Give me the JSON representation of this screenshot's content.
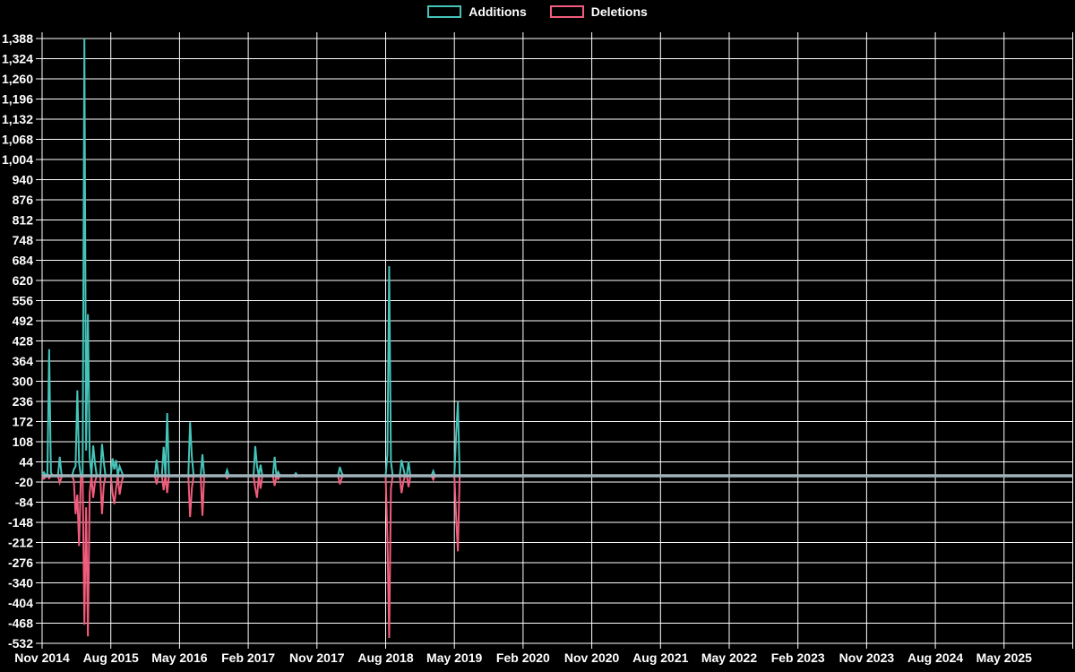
{
  "legend": {
    "items": [
      {
        "label": "Additions",
        "color": "#45C4BA"
      },
      {
        "label": "Deletions",
        "color": "#F25C7C"
      }
    ]
  },
  "chart_data": {
    "type": "line",
    "title": "",
    "xlabel": "",
    "ylabel": "",
    "background": "#000000",
    "grid_color": "#FFFFFF",
    "text_color": "#FFFFFF",
    "zero_line_color": "#9FB3BA",
    "ylim": [
      -532,
      1388
    ],
    "y_tick_step": 64,
    "y_ticks": [
      1388,
      1324,
      1260,
      1196,
      1132,
      1068,
      1004,
      940,
      876,
      812,
      748,
      684,
      620,
      556,
      492,
      428,
      364,
      300,
      236,
      172,
      108,
      44,
      -20,
      -84,
      -148,
      -212,
      -276,
      -340,
      -404,
      -468,
      -532
    ],
    "y_tick_labels": [
      "1,388",
      "1,324",
      "1,260",
      "1,196",
      "1,132",
      "1,068",
      "1,004",
      "940",
      "876",
      "812",
      "748",
      "684",
      "620",
      "556",
      "492",
      "428",
      "364",
      "300",
      "236",
      "172",
      "108",
      "44",
      "-20",
      "-84",
      "-148",
      "-212",
      "-276",
      "-340",
      "-404",
      "-468",
      "-532"
    ],
    "x_tick_labels": [
      "Nov 2014",
      "Aug 2015",
      "May 2016",
      "Feb 2017",
      "Nov 2017",
      "Aug 2018",
      "May 2019",
      "Feb 2020",
      "Nov 2020",
      "Aug 2021",
      "May 2022",
      "Feb 2023",
      "Nov 2023",
      "Aug 2024",
      "May 2025"
    ],
    "x_tick_week_positions": [
      0,
      39,
      78,
      117,
      156,
      195,
      234,
      273,
      312,
      351,
      390,
      429,
      468,
      507,
      546
    ],
    "axis_weeks_total": 585,
    "data_weeks_total": 238,
    "legend_position": "top-center",
    "grid": true,
    "series": [
      {
        "name": "Additions",
        "color": "#45C4BA",
        "data_key": 1
      },
      {
        "name": "Deletions",
        "color": "#F25C7C",
        "data_key": 2
      }
    ],
    "points_sparse_format": "[week_index, additions, deletions] — all unlisted weeks 0..237 are [w,0,0]",
    "points_sparse": [
      [
        0,
        5,
        0
      ],
      [
        1,
        11,
        -10
      ],
      [
        2,
        3,
        -4
      ],
      [
        4,
        402,
        -8
      ],
      [
        5,
        10,
        0
      ],
      [
        10,
        60,
        -22
      ],
      [
        11,
        5,
        -5
      ],
      [
        18,
        20,
        -15
      ],
      [
        19,
        30,
        -122
      ],
      [
        20,
        271,
        -60
      ],
      [
        21,
        40,
        -223
      ],
      [
        24,
        1388,
        -473
      ],
      [
        25,
        80,
        -100
      ],
      [
        26,
        513,
        -510
      ],
      [
        27,
        60,
        -55
      ],
      [
        29,
        96,
        -70
      ],
      [
        30,
        40,
        -20
      ],
      [
        34,
        101,
        -122
      ],
      [
        35,
        44,
        -30
      ],
      [
        40,
        55,
        -55
      ],
      [
        41,
        20,
        -90
      ],
      [
        42,
        50,
        -40
      ],
      [
        44,
        30,
        -60
      ],
      [
        45,
        15,
        -25
      ],
      [
        65,
        51,
        -27
      ],
      [
        69,
        92,
        -46
      ],
      [
        71,
        199,
        -55
      ],
      [
        84,
        170,
        -131
      ],
      [
        85,
        60,
        -40
      ],
      [
        91,
        68,
        -127
      ],
      [
        105,
        18,
        -8
      ],
      [
        121,
        94,
        -40
      ],
      [
        122,
        30,
        -70
      ],
      [
        124,
        35,
        -41
      ],
      [
        132,
        60,
        -32
      ],
      [
        134,
        12,
        -10
      ],
      [
        144,
        8,
        -3
      ],
      [
        169,
        28,
        -27
      ],
      [
        170,
        10,
        -8
      ],
      [
        196,
        68,
        -198
      ],
      [
        197,
        665,
        -515
      ],
      [
        198,
        45,
        -40
      ],
      [
        204,
        50,
        -55
      ],
      [
        205,
        25,
        -20
      ],
      [
        208,
        45,
        -36
      ],
      [
        222,
        15,
        -12
      ],
      [
        235,
        129,
        -131
      ],
      [
        236,
        234,
        -240
      ]
    ]
  }
}
